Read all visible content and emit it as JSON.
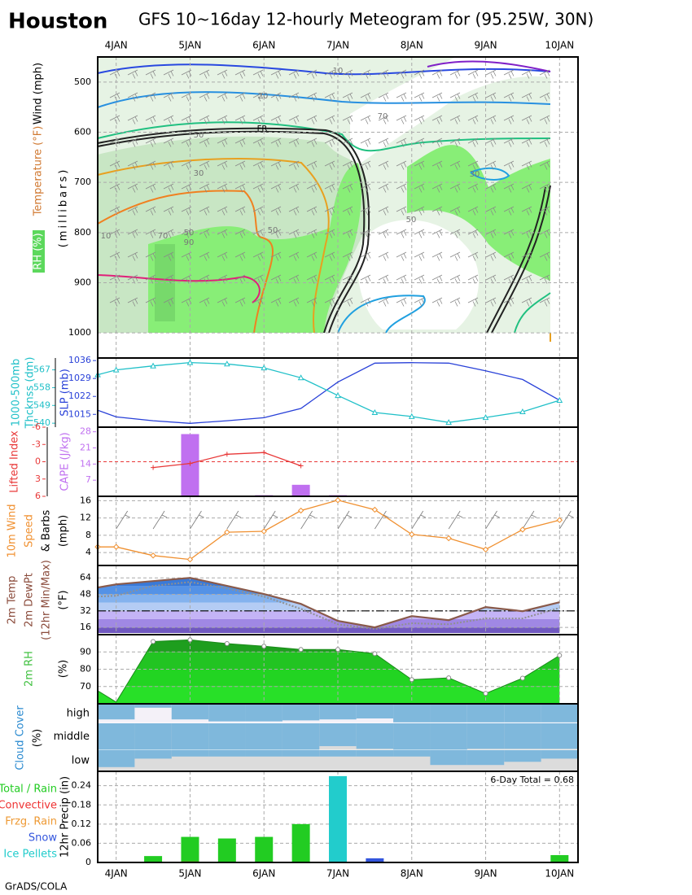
{
  "station": "Houston",
  "title": "GFS 10~16day 12-hourly Meteogram for (95.25W, 30N)",
  "footer": "GrADS/COLA",
  "chart_data": [
    {
      "type": "contour",
      "ylabels": [
        "Wind (mph)",
        "Temperature (°F)",
        "(millibars)",
        "RH (%)"
      ],
      "xlim": [
        3.75,
        10.25
      ],
      "xticks": [
        {
          "value": 4,
          "label": "4JAN"
        },
        {
          "value": 5,
          "label": "5JAN"
        },
        {
          "value": 6,
          "label": "6JAN"
        },
        {
          "value": 7,
          "label": "7JAN"
        },
        {
          "value": 8,
          "label": "8JAN"
        },
        {
          "value": 9,
          "label": "9JAN"
        },
        {
          "value": 10,
          "label": "10JAN"
        }
      ],
      "ylim": [
        1050,
        450
      ],
      "yticks": [
        500,
        600,
        700,
        800,
        900,
        1000
      ],
      "grid": true,
      "contour_labels": [
        "10",
        "20",
        "70",
        "50",
        "30",
        "30",
        "50",
        "50",
        "70",
        "50",
        "90",
        "10"
      ],
      "front_label": "FR"
    },
    {
      "type": "line",
      "ylabel": [
        "SLP (mb)"
      ],
      "y2label": [
        "1000-500mb",
        "Thcknss (dm)"
      ],
      "xlim": [
        3.75,
        10.25
      ],
      "x": [
        3.75,
        4,
        4.5,
        5,
        5.5,
        6,
        6.5,
        7,
        7.5,
        8,
        8.5,
        9,
        9.5,
        10
      ],
      "ylim": [
        1010,
        1037
      ],
      "yticks": [
        1015,
        1022,
        1029,
        1036
      ],
      "y2lim": [
        538,
        573
      ],
      "y2ticks": [
        540,
        549,
        558,
        567
      ],
      "grid": false,
      "series": [
        {
          "color": "#2840d8",
          "values": [
            1016.6,
            1014,
            1012.5,
            1011.5,
            1012.5,
            1013.7,
            1017.3,
            1027.6,
            1035,
            1035.2,
            1035,
            1032,
            1028.6,
            1020.5
          ]
        },
        {
          "color": "#20c0c8",
          "axis": "y2",
          "markers": true,
          "values": [
            564.5,
            567,
            569,
            570.7,
            570,
            568,
            563,
            554,
            545.4,
            543.4,
            540.4,
            542.9,
            545.8,
            551.6
          ]
        }
      ]
    },
    {
      "type": "bar_line",
      "ylabel": [
        "CAPE (J/kg)"
      ],
      "y2label": [
        "Lifted Index"
      ],
      "xlim": [
        3.75,
        10.25
      ],
      "x": [
        4,
        4.5,
        5,
        5.5,
        6,
        6.5,
        7,
        7.5,
        8,
        8.5,
        9,
        9.5,
        10
      ],
      "ylim": [
        0,
        30
      ],
      "yticks": [
        7,
        14,
        21,
        28
      ],
      "y2lim": [
        6,
        -6
      ],
      "y2ticks": [
        -6,
        -3,
        0,
        3,
        6
      ],
      "reference": 0,
      "grid": false,
      "series": [
        {
          "color": "#c070f0",
          "values": [
            0,
            0,
            27,
            0,
            0.5,
            5,
            0.5,
            0,
            0,
            0,
            0,
            0,
            0
          ]
        },
        {
          "color": "#e83838",
          "axis": "y2",
          "markers": true,
          "values": [
            null,
            1,
            0.3,
            -1.3,
            -1.6,
            0.7,
            null,
            null,
            null,
            null,
            null,
            null,
            null
          ]
        }
      ]
    },
    {
      "type": "line",
      "ylabel": [
        "10m Wind",
        "Speed",
        "& Barbs",
        "(mph)"
      ],
      "xlim": [
        3.75,
        10.25
      ],
      "x": [
        3.75,
        4,
        4.5,
        5,
        5.5,
        6,
        6.5,
        7,
        7.5,
        8,
        8.5,
        9,
        9.5,
        10
      ],
      "ylim": [
        1,
        17
      ],
      "yticks": [
        4,
        8,
        12,
        16
      ],
      "grid": true,
      "series": [
        {
          "color": "#f09030",
          "markers": true,
          "values": [
            5.3,
            5.3,
            3.3,
            2.4,
            8.7,
            8.9,
            13.7,
            16.1,
            13.9,
            8.2,
            7.3,
            4.7,
            9.3,
            11.5
          ]
        }
      ]
    },
    {
      "type": "temperature",
      "ylabel": [
        "2m Temp",
        "2m DewPt",
        "(12hr Min/Max)",
        "(°F)"
      ],
      "xlim": [
        3.75,
        10.25
      ],
      "x": [
        3.75,
        4,
        4.5,
        5,
        5.5,
        6,
        6.5,
        7,
        7.5,
        8,
        8.5,
        9,
        9.5,
        10
      ],
      "ylim": [
        9,
        76
      ],
      "yticks": [
        16,
        32,
        48,
        64
      ],
      "freezing": 32,
      "grid": true,
      "series": [
        {
          "color": "#8a5a4a",
          "values": [
            54.6,
            57.7,
            60.9,
            64,
            56.2,
            48.3,
            38.8,
            22.3,
            16,
            27,
            23,
            35.7,
            31.7,
            40.4
          ]
        },
        {
          "color": "#909090",
          "values": [
            45.9,
            46.7,
            56.2,
            60,
            53.8,
            45.9,
            34,
            19,
            14.4,
            20,
            19,
            24.7,
            24.7,
            34.9
          ]
        }
      ]
    },
    {
      "type": "area",
      "ylabel": [
        "2m RH",
        "(%)"
      ],
      "xlim": [
        3.75,
        10.25
      ],
      "x": [
        3.75,
        4,
        4.5,
        5,
        5.5,
        6,
        6.5,
        7,
        7.5,
        8,
        8.5,
        9,
        9.5,
        10
      ],
      "ylim": [
        60,
        100
      ],
      "yticks": [
        70,
        80,
        90
      ],
      "grid": true,
      "series": [
        {
          "color": "#1a8a1a",
          "markers": true,
          "values": [
            67.6,
            61,
            96,
            97,
            94.8,
            93.3,
            91.4,
            91.4,
            89,
            74,
            75,
            66,
            74.8,
            88
          ]
        }
      ]
    },
    {
      "type": "cloud",
      "ylabel": [
        "Cloud Cover",
        "(%)"
      ],
      "xlim": [
        3.75,
        10.25
      ],
      "x": [
        4,
        4.5,
        5,
        5.5,
        6,
        6.5,
        7,
        7.5,
        8,
        8.5,
        9,
        9.5,
        10
      ],
      "series": [
        {
          "name": "high",
          "color": "#7fb8dc",
          "values": [
            80,
            20,
            80,
            90,
            90,
            85,
            80,
            75,
            95,
            95,
            95,
            95,
            95
          ]
        },
        {
          "name": "middle",
          "color": "#7fb8dc",
          "values": [
            100,
            100,
            100,
            100,
            100,
            100,
            85,
            95,
            100,
            100,
            95,
            95,
            95
          ]
        },
        {
          "name": "low",
          "color": "#7fb8dc",
          "values": [
            80,
            40,
            30,
            30,
            30,
            30,
            30,
            30,
            30,
            70,
            70,
            55,
            40
          ]
        }
      ]
    },
    {
      "type": "bar",
      "ylabel": [
        "12hr Precip (in)"
      ],
      "annotation": "6-Day Total = 0.68",
      "xlim": [
        3.75,
        10.25
      ],
      "xticks": [
        {
          "value": 4,
          "label": "4JAN"
        },
        {
          "value": 5,
          "label": "5JAN"
        },
        {
          "value": 6,
          "label": "6JAN"
        },
        {
          "value": 7,
          "label": "7JAN"
        },
        {
          "value": 8,
          "label": "8JAN"
        },
        {
          "value": 9,
          "label": "9JAN"
        },
        {
          "value": 10,
          "label": "10JAN"
        }
      ],
      "x": [
        4,
        4.5,
        5,
        5.5,
        6,
        6.5,
        7,
        7.5,
        8,
        8.5,
        9,
        9.5,
        10
      ],
      "ylim": [
        0,
        0.285
      ],
      "yticks": [
        0,
        0.06,
        0.12,
        0.18,
        0.24
      ],
      "grid": true,
      "series": [
        {
          "name": "Total / Rain",
          "color": "#22cc22",
          "values": [
            null,
            0.02,
            0.08,
            0.075,
            0.08,
            0.12,
            null,
            null,
            null,
            null,
            null,
            null,
            0.023
          ]
        },
        {
          "name": "Convective",
          "color": "#ee3333",
          "values": [
            null,
            null,
            0.003,
            null,
            null,
            null,
            null,
            null,
            null,
            null,
            null,
            null,
            null
          ]
        },
        {
          "name": "Frzg. Rain",
          "color": "#ee9933",
          "values": [
            null,
            null,
            null,
            null,
            null,
            null,
            null,
            null,
            null,
            null,
            null,
            null,
            null
          ]
        },
        {
          "name": "Snow",
          "color": "#3355dd",
          "values": [
            null,
            null,
            null,
            null,
            null,
            null,
            null,
            0.013,
            null,
            null,
            null,
            null,
            null
          ]
        },
        {
          "name": "Ice Pellets",
          "color": "#22cccc",
          "values": [
            null,
            null,
            null,
            null,
            null,
            null,
            0.27,
            null,
            null,
            null,
            null,
            null,
            null
          ]
        }
      ]
    }
  ]
}
